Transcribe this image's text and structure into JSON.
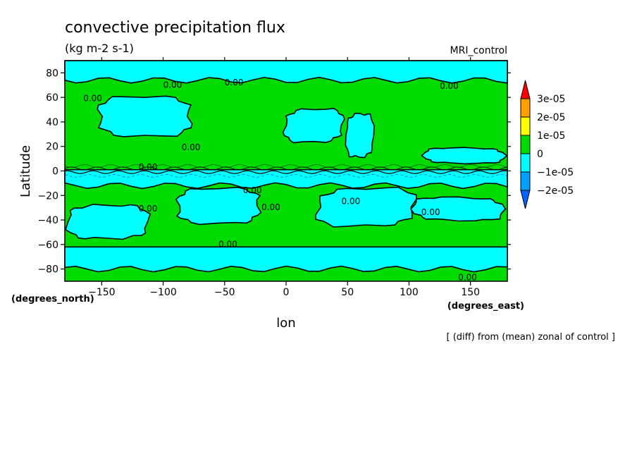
{
  "chart_data": {
    "type": "heatmap",
    "title": "convective precipitation flux",
    "subtitle": "(kg m-2 s-1)",
    "dataset_label": "MRI_control",
    "xlabel": "lon",
    "ylabel": "Latitude",
    "x_unit_label": "(degrees_east)",
    "y_unit_label": "(degrees_north)",
    "footnote": "[ (diff) from (mean) zonal of control ]",
    "xlim": [
      -180,
      180
    ],
    "ylim": [
      -90,
      90
    ],
    "x_ticks": [
      -150,
      -100,
      -50,
      0,
      50,
      100,
      150
    ],
    "y_ticks": [
      -80,
      -60,
      -40,
      -20,
      0,
      20,
      40,
      60,
      80
    ],
    "contour_label": "0.00",
    "colorbar": {
      "levels": [
        "3e-05",
        "2e-05",
        "1e-05",
        "0",
        "-1e-05",
        "-2e-05"
      ],
      "bands": [
        {
          "range": "> 3e-05",
          "color": "#ff0000"
        },
        {
          "range": "2e-05 to 3e-05",
          "color": "#ffa000"
        },
        {
          "range": "1e-05 to 2e-05",
          "color": "#ffff00"
        },
        {
          "range": "0 to 1e-05",
          "color": "#00dc00"
        },
        {
          "range": "-1e-05 to 0",
          "color": "#00ffff"
        },
        {
          "range": "-2e-05 to -1e-05",
          "color": "#00a0ff"
        },
        {
          "range": "< -2e-05",
          "color": "#0064ff"
        }
      ]
    },
    "regions": [
      {
        "sign": "negative",
        "lon": [
          -180,
          180
        ],
        "lat": [
          74,
          90
        ]
      },
      {
        "sign": "negative",
        "lon": [
          -160,
          -70
        ],
        "lat": [
          27,
          62
        ]
      },
      {
        "sign": "negative",
        "lon": [
          -5,
          50
        ],
        "lat": [
          22,
          52
        ]
      },
      {
        "sign": "negative",
        "lon": [
          48,
          72
        ],
        "lat": [
          8,
          50
        ]
      },
      {
        "sign": "negative",
        "lon": [
          110,
          180
        ],
        "lat": [
          5,
          20
        ]
      },
      {
        "sign": "negative",
        "lon": [
          -180,
          180
        ],
        "lat": [
          -12,
          1
        ]
      },
      {
        "sign": "negative",
        "lon": [
          -95,
          -15
        ],
        "lat": [
          -44,
          -13
        ]
      },
      {
        "sign": "negative",
        "lon": [
          20,
          110
        ],
        "lat": [
          -47,
          -12
        ]
      },
      {
        "sign": "negative",
        "lon": [
          -180,
          -110
        ],
        "lat": [
          -58,
          -25
        ]
      },
      {
        "sign": "negative",
        "lon": [
          100,
          180
        ],
        "lat": [
          -42,
          -20
        ]
      },
      {
        "sign": "negative",
        "lon": [
          -180,
          180
        ],
        "lat": [
          -80,
          -62
        ]
      }
    ]
  }
}
